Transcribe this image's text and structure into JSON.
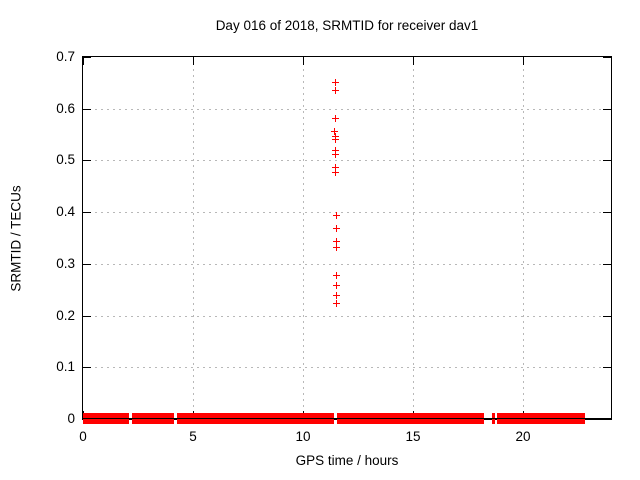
{
  "chart_data": {
    "type": "scatter",
    "title": "Day 016 of 2018, SRMTID for receiver dav1",
    "xlabel": "GPS time / hours",
    "ylabel": "SRMTID / TECUs",
    "xlim": [
      0,
      24
    ],
    "ylim": [
      0,
      0.7
    ],
    "xticks": [
      0,
      5,
      10,
      15,
      20
    ],
    "xticklabels": [
      "0",
      "5",
      "10",
      "15",
      "20"
    ],
    "yticks": [
      0,
      0.1,
      0.2,
      0.3,
      0.4,
      0.5,
      0.6,
      0.7
    ],
    "yticklabels": [
      "0",
      "0.1",
      "0.2",
      "0.3",
      "0.4",
      "0.5",
      "0.6",
      "0.7"
    ],
    "grid": true,
    "legend_position": "none",
    "marker": "plus",
    "marker_color": "#ff0000",
    "series": [
      {
        "name": "SRMTID",
        "baseline_y": 0,
        "baseline_segments_hours": [
          [
            0.0,
            2.09
          ],
          [
            2.23,
            4.14
          ],
          [
            4.27,
            11.41
          ],
          [
            11.55,
            18.23
          ],
          [
            18.59,
            18.72
          ],
          [
            18.82,
            22.82
          ]
        ],
        "cluster_points": [
          [
            11.45,
            0.652
          ],
          [
            11.45,
            0.636
          ],
          [
            11.45,
            0.582
          ],
          [
            11.43,
            0.556
          ],
          [
            11.47,
            0.548
          ],
          [
            11.45,
            0.541
          ],
          [
            11.45,
            0.52
          ],
          [
            11.45,
            0.513
          ],
          [
            11.45,
            0.487
          ],
          [
            11.45,
            0.478
          ],
          [
            11.5,
            0.395
          ],
          [
            11.5,
            0.369
          ],
          [
            11.48,
            0.344
          ],
          [
            11.48,
            0.333
          ],
          [
            11.5,
            0.279
          ],
          [
            11.5,
            0.259
          ],
          [
            11.48,
            0.24
          ],
          [
            11.48,
            0.224
          ]
        ]
      }
    ]
  }
}
